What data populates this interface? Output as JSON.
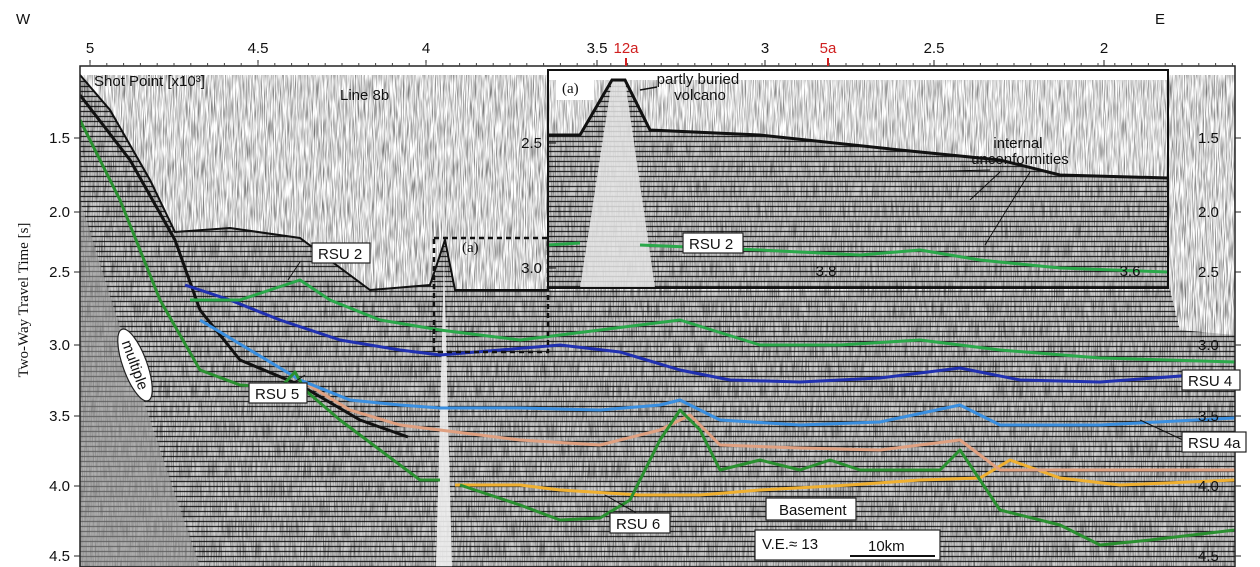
{
  "header": {
    "west": "W",
    "east": "E"
  },
  "top_axis": {
    "ticks": [
      "5",
      "4.5",
      "4",
      "3.5",
      "3",
      "2.5",
      "2"
    ],
    "shot_points": [
      "12a",
      "5a"
    ]
  },
  "left_axis": {
    "title": "Two-Way Travel Time [s]",
    "ticks": [
      "1.5",
      "2.0",
      "2.5",
      "3.0",
      "3.5",
      "4.0",
      "4.5"
    ]
  },
  "right_axis": {
    "ticks": [
      "1.5",
      "2.0",
      "2.5",
      "3.0",
      "3.5",
      "4.0",
      "4.5"
    ]
  },
  "profile": {
    "axis_note": "Shot Point [x10³]",
    "line": "Line 8b",
    "multiple": "multiple",
    "inset_marker": "(a)",
    "horizons": [
      "RSU 2",
      "RSU 5",
      "RSU 6",
      "RSU 4",
      "RSU 4a"
    ],
    "basement": "Basement",
    "exaggeration": "V.E.≈ 13",
    "scale": "10km"
  },
  "inset": {
    "label": "(a)",
    "volcano": [
      "partly buried",
      "volcano"
    ],
    "unconformities": [
      "internal",
      "unconformities"
    ],
    "horizon": "RSU 2",
    "left_ticks": [
      "2.5",
      "3.0"
    ],
    "bottom_ticks": [
      "3.8",
      "3.6"
    ]
  }
}
